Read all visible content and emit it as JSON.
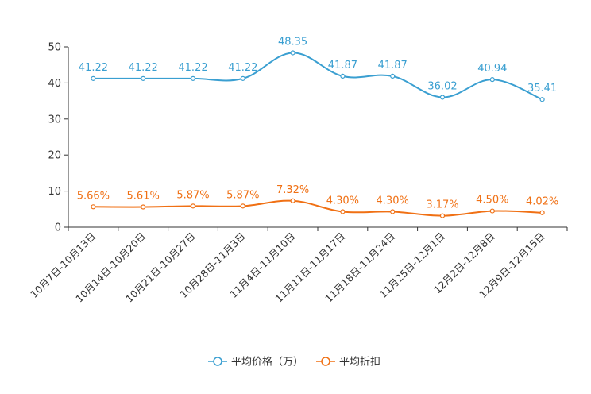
{
  "chart_data": {
    "type": "line",
    "title": "",
    "xlabel": "",
    "ylabel": "",
    "ylim": [
      0,
      50
    ],
    "yticks": [
      0,
      10,
      20,
      30,
      40,
      50
    ],
    "grid": false,
    "legend_position": "bottom-center",
    "categories": [
      "10月7日-10月13日",
      "10月14日-10月20日",
      "10月21日-10月27日",
      "10月28日-11月3日",
      "11月4日-11月10日",
      "11月11日-11月17日",
      "11月18日-11月24日",
      "11月25日-12月1日",
      "12月2日-12月8日",
      "12月9日-12月15日"
    ],
    "series": [
      {
        "name": "平均价格（万）",
        "color": "#3a9fd1",
        "values": [
          41.22,
          41.22,
          41.22,
          41.22,
          48.35,
          41.87,
          41.87,
          36.02,
          40.94,
          35.41
        ],
        "labels": [
          "41.22",
          "41.22",
          "41.22",
          "41.22",
          "48.35",
          "41.87",
          "41.87",
          "36.02",
          "40.94",
          "35.41"
        ]
      },
      {
        "name": "平均折扣",
        "color": "#f07014",
        "values": [
          5.66,
          5.61,
          5.87,
          5.87,
          7.32,
          4.3,
          4.3,
          3.17,
          4.5,
          4.02
        ],
        "labels": [
          "5.66%",
          "5.61%",
          "5.87%",
          "5.87%",
          "7.32%",
          "4.30%",
          "4.30%",
          "3.17%",
          "4.50%",
          "4.02%"
        ]
      }
    ]
  }
}
